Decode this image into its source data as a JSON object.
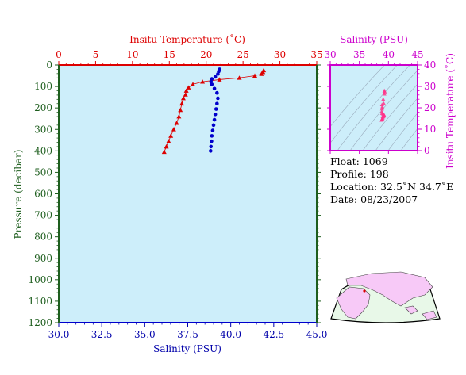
{
  "colors": {
    "temperature": "#dd0000",
    "salinity_axis": "#cc00cc",
    "salinity_points": "#0000cc",
    "ts_points": "#ff3388",
    "pressure_axis": "#1e5e1e",
    "panel_bg": "#cdeefa",
    "land": "#f7c9f7",
    "ocean": "#e8f8e8"
  },
  "chart_data": [
    {
      "type": "scatter",
      "name": "profile",
      "top_axis": {
        "label": "Insitu Temperature (˚C)",
        "range": [
          0,
          35
        ],
        "ticks": [
          "0",
          "5",
          "10",
          "15",
          "20",
          "25",
          "30",
          "35"
        ]
      },
      "bottom_axis": {
        "label": "Salinity (PSU)",
        "range": [
          30,
          45
        ],
        "ticks": [
          "30.0",
          "32.5",
          "35.0",
          "37.5",
          "40.0",
          "42.5",
          "45.0"
        ]
      },
      "left_axis": {
        "label": "Pressure (decibar)",
        "range": [
          0,
          1200
        ],
        "inverted": true,
        "ticks": [
          "0",
          "100",
          "200",
          "300",
          "400",
          "500",
          "600",
          "700",
          "800",
          "900",
          "1000",
          "1100",
          "1200"
        ]
      },
      "temperature_series": {
        "points": [
          [
            27.8,
            25
          ],
          [
            27.7,
            33
          ],
          [
            27.5,
            42
          ],
          [
            26.6,
            50
          ],
          [
            24.5,
            60
          ],
          [
            21.8,
            68
          ],
          [
            19.5,
            78
          ],
          [
            18.2,
            90
          ],
          [
            17.6,
            105
          ],
          [
            17.3,
            120
          ],
          [
            17.2,
            138
          ],
          [
            16.9,
            155
          ],
          [
            16.7,
            180
          ],
          [
            16.5,
            210
          ],
          [
            16.3,
            240
          ],
          [
            16.0,
            270
          ],
          [
            15.6,
            300
          ],
          [
            15.2,
            330
          ],
          [
            14.9,
            355
          ],
          [
            14.6,
            380
          ],
          [
            14.3,
            405
          ]
        ]
      },
      "salinity_series": {
        "points": [
          [
            39.35,
            20
          ],
          [
            39.3,
            30
          ],
          [
            39.25,
            42
          ],
          [
            39.1,
            55
          ],
          [
            38.9,
            65
          ],
          [
            38.85,
            78
          ],
          [
            38.9,
            90
          ],
          [
            39.05,
            110
          ],
          [
            39.2,
            130
          ],
          [
            39.25,
            155
          ],
          [
            39.2,
            180
          ],
          [
            39.15,
            205
          ],
          [
            39.1,
            230
          ],
          [
            39.05,
            255
          ],
          [
            39.0,
            280
          ],
          [
            38.95,
            305
          ],
          [
            38.9,
            330
          ],
          [
            38.88,
            355
          ],
          [
            38.85,
            380
          ],
          [
            38.83,
            400
          ]
        ]
      }
    },
    {
      "type": "scatter",
      "name": "ts_diagram",
      "top_axis": {
        "label": "Salinity (PSU)",
        "range": [
          30,
          45
        ],
        "ticks": [
          "30",
          "35",
          "40",
          "45"
        ]
      },
      "right_axis": {
        "label": "Insitu Temperature (˚C)",
        "range": [
          0,
          40
        ],
        "ticks": [
          "0",
          "10",
          "20",
          "30",
          "40"
        ]
      },
      "points": [
        [
          39.3,
          28
        ],
        [
          39.35,
          27.5
        ],
        [
          39.3,
          26.5
        ],
        [
          39.1,
          24
        ],
        [
          38.9,
          21.5
        ],
        [
          38.9,
          19.5
        ],
        [
          38.85,
          18.2
        ],
        [
          38.9,
          17.5
        ],
        [
          39.05,
          17.2
        ],
        [
          39.2,
          16.9
        ],
        [
          39.25,
          16.6
        ],
        [
          39.2,
          16.2
        ],
        [
          39.1,
          15.8
        ],
        [
          39.0,
          15.3
        ],
        [
          38.95,
          14.9
        ],
        [
          38.88,
          14.6
        ],
        [
          38.83,
          14.3
        ],
        [
          39.2,
          22
        ],
        [
          38.95,
          20.5
        ],
        [
          39.0,
          16.0
        ]
      ]
    }
  ],
  "info": {
    "float": "Float:  1069",
    "profile": "Profile:  198",
    "location": "Location:  32.5˚N  34.7˚E",
    "date": "Date:  08/23/2007"
  }
}
